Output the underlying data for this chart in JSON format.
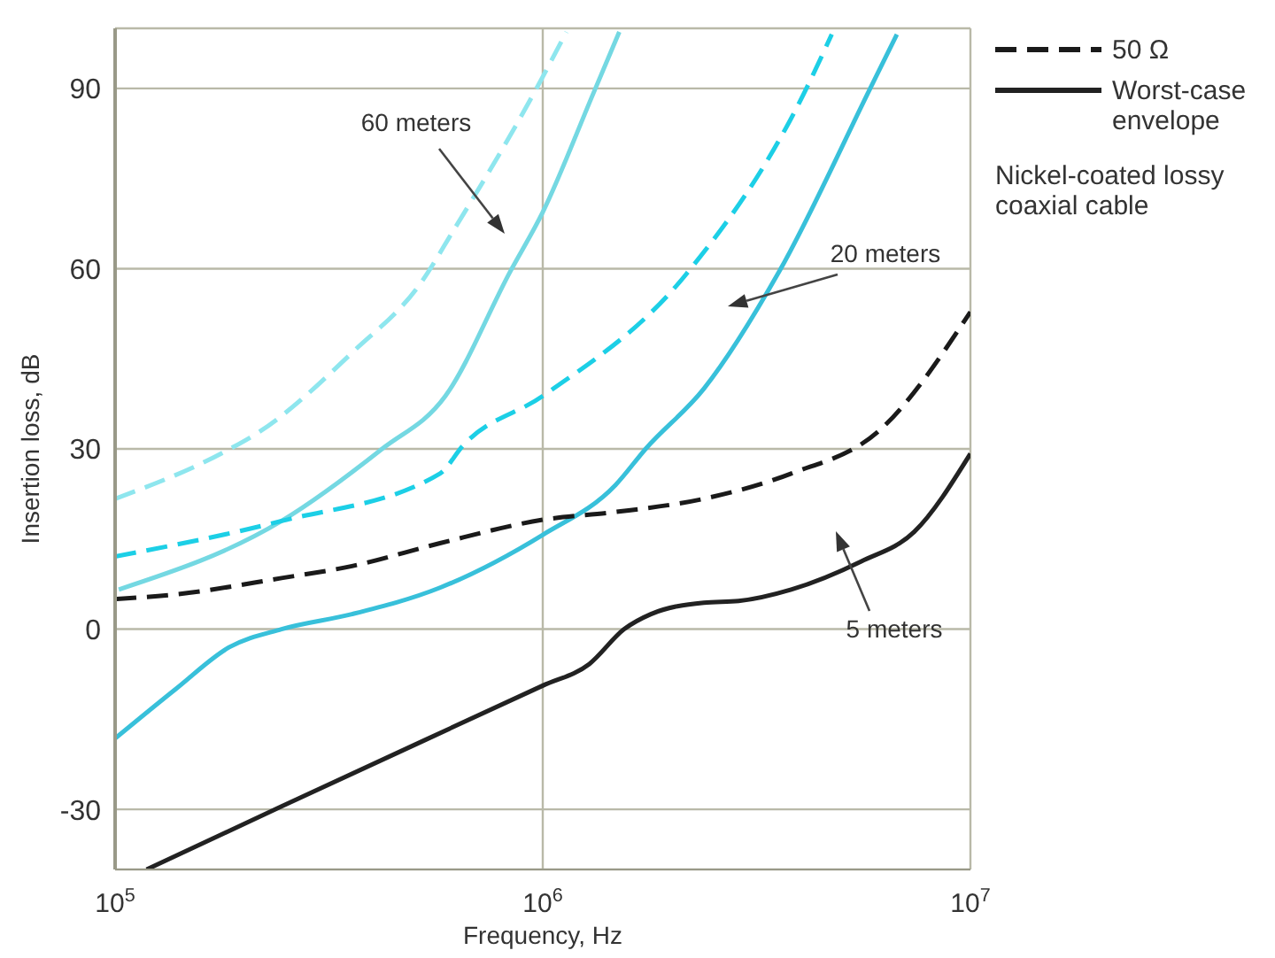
{
  "chart_data": {
    "type": "line",
    "xlabel": "Frequency, Hz",
    "ylabel": "Insertion loss, dB",
    "log": "x",
    "grid": true,
    "legend": "top right",
    "xlim": [
      100000,
      10000000
    ],
    "xticks": [
      {
        "value": 100000,
        "label": "10$^{5}$"
      },
      {
        "value": 1000000,
        "label": "10$^{6}$"
      },
      {
        "value": 10000000,
        "label": "10$^{7}$"
      }
    ],
    "ylim": [
      -40,
      100
    ],
    "yticks": [
      -30,
      0,
      30,
      60,
      90
    ],
    "series": [
      {
        "color": "#8ee6ee",
        "line_style": "dashed",
        "x": [
          100000,
          180000,
          217000,
          358000,
          523000,
          614000,
          950000,
          1136000
        ],
        "values": [
          21.7,
          29.5,
          32.8,
          46,
          58,
          66,
          89,
          99.4
        ]
      },
      {
        "color": "#74d8e2",
        "line_style": "solid",
        "x": [
          102000,
          245000,
          421000,
          592000,
          839000,
          1000000,
          1310000,
          1510000
        ],
        "values": [
          6.6,
          18,
          30,
          38.8,
          59.5,
          69.4,
          89,
          99.4
        ]
      },
      {
        "color": "#1ccfe6",
        "line_style": "dashed",
        "x": [
          100000,
          245000,
          575000,
          650000,
          1000000,
          2160000,
          4070000,
          4740000
        ],
        "values": [
          12.1,
          18,
          25.9,
          30.5,
          38.8,
          59,
          89,
          99
        ]
      },
      {
        "color": "#38c0da",
        "line_style": "solid",
        "x": [
          100000,
          139000,
          185000,
          245000,
          358000,
          575000,
          1000000,
          1480000,
          1740000,
          2380000,
          3570000,
          5830000,
          6730000
        ],
        "values": [
          -18.2,
          -9.9,
          -3,
          0,
          2.5,
          6.9,
          15.7,
          24,
          30,
          40,
          59.5,
          90,
          99
        ]
      },
      {
        "name": "50 Ω",
        "color": "#1a1a1a",
        "line_style": "dashed",
        "x": [
          100000,
          139000,
          245000,
          358000,
          575000,
          1000000,
          1480000,
          2380000,
          3810000,
          6110000,
          10000000
        ],
        "values": [
          5,
          5.8,
          8.5,
          10.5,
          14.3,
          18.2,
          19.5,
          21.7,
          25.9,
          33,
          52.8
        ]
      },
      {
        "name": "Worst-case envelope",
        "color": "#222222",
        "line_style": "solid",
        "x": [
          118500,
          245000,
          1000000,
          1285000,
          1550000,
          1790000,
          2380000,
          2870000,
          3810000,
          5560000,
          7390000,
          10000000
        ],
        "values": [
          -40,
          -29.5,
          -9.4,
          -5.8,
          0,
          2.5,
          4.4,
          4.7,
          6.6,
          11.3,
          16.2,
          29.2
        ]
      }
    ],
    "annotations": [
      "60 meters",
      "20 meters",
      "5 meters",
      "Nickel-coated lossy coaxial cable"
    ]
  }
}
